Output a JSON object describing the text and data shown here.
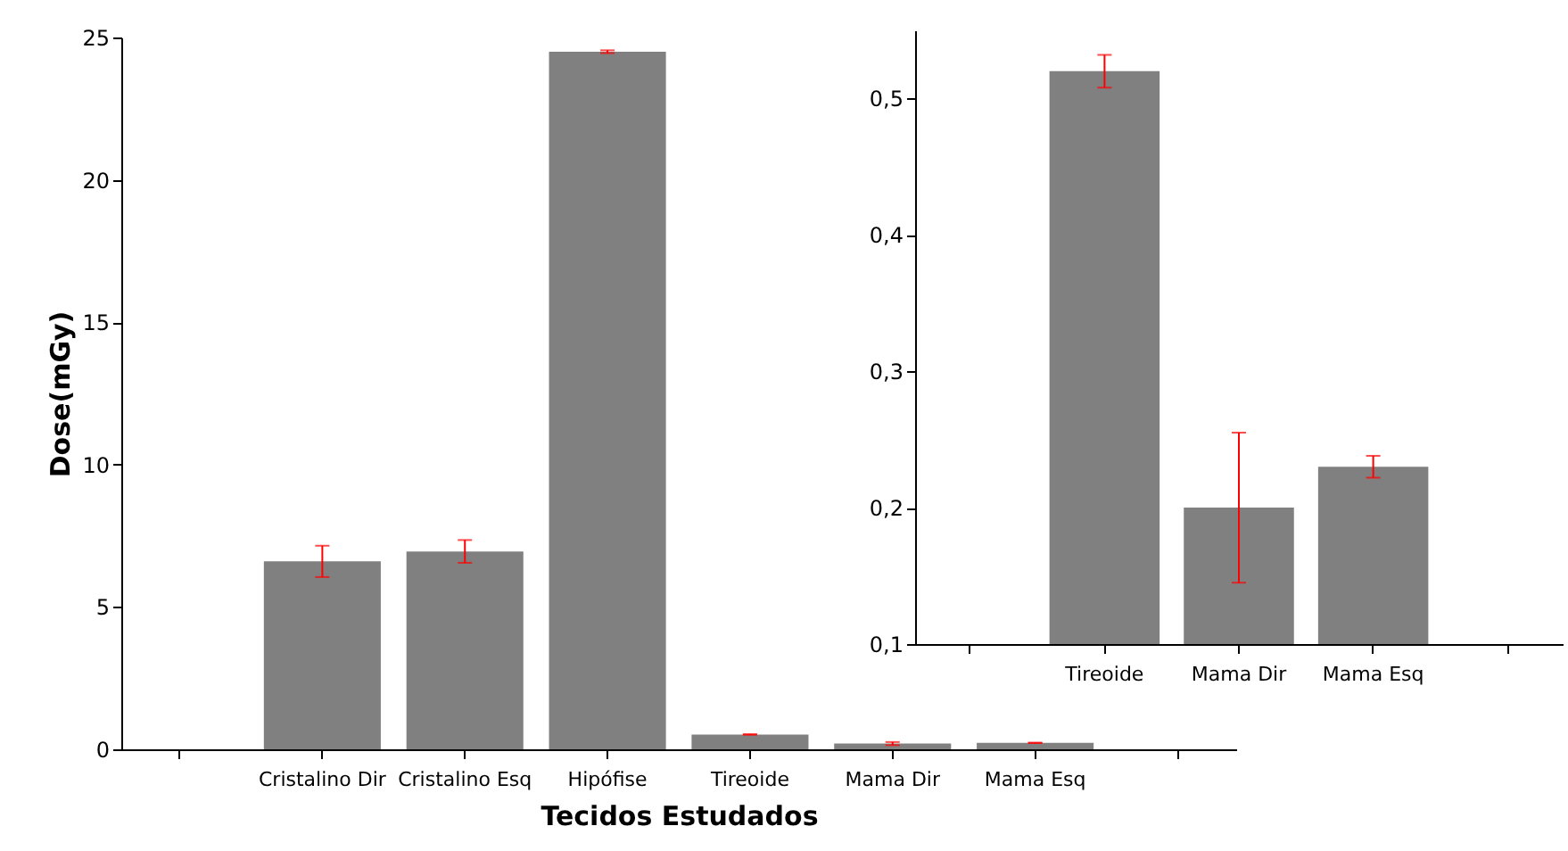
{
  "chart_data": [
    {
      "type": "bar",
      "xlabel": "Tecidos Estudados",
      "ylabel": "Dose(mGy)",
      "categories": [
        null,
        "Cristalino Dir",
        "Cristalino Esq",
        "Hipófise",
        "Tireoide",
        "Mama Dir",
        "Mama Esq",
        null
      ],
      "series": [
        {
          "color": "#808080",
          "values": [
            null,
            6.6,
            6.95,
            24.5,
            0.52,
            0.2,
            0.23,
            null
          ],
          "errors": [
            null,
            0.55,
            0.4,
            0.05,
            0.012,
            0.055,
            0.008,
            null
          ]
        }
      ],
      "ylim": [
        0,
        25
      ],
      "yticks": [
        0,
        5,
        10,
        15,
        20,
        25
      ],
      "grid": false
    },
    {
      "type": "bar",
      "categories": [
        null,
        "Tireoide",
        "Mama Dir",
        "Mama Esq",
        null
      ],
      "series": [
        {
          "color": "#808080",
          "values": [
            null,
            0.52,
            0.2,
            0.23,
            null
          ],
          "errors": [
            null,
            0.012,
            0.055,
            0.008,
            null
          ]
        }
      ],
      "ylim": [
        0.1,
        0.55
      ],
      "yticks": [
        {
          "value": 0.1,
          "label": "0,1"
        },
        {
          "value": 0.2,
          "label": "0,2"
        },
        {
          "value": 0.3,
          "label": "0,3"
        },
        {
          "value": 0.4,
          "label": "0,4"
        },
        {
          "value": 0.5,
          "label": "0,5"
        }
      ],
      "grid": false
    }
  ]
}
